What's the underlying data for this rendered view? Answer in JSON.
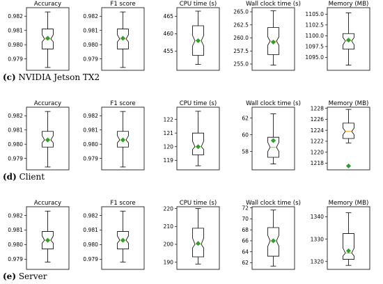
{
  "captions": [
    {
      "letter": "(c)",
      "text": "NVIDIA Jetson TX2"
    },
    {
      "letter": "(d)",
      "text": "Client"
    },
    {
      "letter": "(e)",
      "text": "Server"
    }
  ],
  "chart_data": [
    {
      "type": "box",
      "panel": "c",
      "title": "Accuracy",
      "ylim": [
        0.9782,
        0.9826
      ],
      "ticks": [
        0.979,
        0.98,
        0.981,
        0.982
      ],
      "whislo": 0.9784,
      "q1": 0.9797,
      "med_lo": 0.9802,
      "median": 0.9804,
      "med_hi": 0.9807,
      "q3": 0.9811,
      "whishi": 0.9823,
      "mean": 0.98045,
      "outliers": []
    },
    {
      "type": "box",
      "panel": "c",
      "title": "F1 score",
      "ylim": [
        0.9782,
        0.9826
      ],
      "ticks": [
        0.979,
        0.98,
        0.981,
        0.982
      ],
      "whislo": 0.9784,
      "q1": 0.9797,
      "med_lo": 0.9802,
      "median": 0.9804,
      "med_hi": 0.9807,
      "q3": 0.9811,
      "whishi": 0.9823,
      "mean": 0.98045,
      "outliers": []
    },
    {
      "type": "box",
      "panel": "c",
      "title": "CPU time (s)",
      "ylim": [
        449.5,
        467.5
      ],
      "ticks": [
        455,
        460,
        465
      ],
      "whislo": 451.2,
      "q1": 453.8,
      "med_lo": 456.5,
      "median": 458.0,
      "med_hi": 459.5,
      "q3": 462.3,
      "whishi": 466.5,
      "mean": 458.0,
      "outliers": []
    },
    {
      "type": "box",
      "panel": "c",
      "title": "Wall clock time (s)",
      "ylim": [
        253.8,
        265.8
      ],
      "ticks": [
        255.0,
        257.5,
        260.0,
        262.5,
        265.0
      ],
      "whislo": 254.8,
      "q1": 256.8,
      "med_lo": 258.6,
      "median": 259.4,
      "med_hi": 260.2,
      "q3": 262.0,
      "whishi": 265.2,
      "mean": 259.2,
      "outliers": []
    },
    {
      "type": "box",
      "panel": "c",
      "title": "Memory (MB)",
      "ylim": [
        1092.0,
        1106.5
      ],
      "ticks": [
        1095.0,
        1097.5,
        1100.0,
        1102.5,
        1105.0
      ],
      "whislo": 1093.2,
      "q1": 1096.9,
      "med_lo": 1097.9,
      "median": 1098.8,
      "med_hi": 1099.6,
      "q3": 1100.5,
      "whishi": 1105.3,
      "mean": 1099.0,
      "outliers": []
    },
    {
      "type": "box",
      "panel": "d",
      "title": "Accuracy",
      "ylim": [
        0.9782,
        0.9826
      ],
      "ticks": [
        0.979,
        0.98,
        0.981,
        0.982
      ],
      "whislo": 0.9784,
      "q1": 0.9798,
      "med_lo": 0.9801,
      "median": 0.9803,
      "med_hi": 0.9806,
      "q3": 0.9809,
      "whishi": 0.9823,
      "mean": 0.9803,
      "outliers": []
    },
    {
      "type": "box",
      "panel": "d",
      "title": "F1 score",
      "ylim": [
        0.9782,
        0.9826
      ],
      "ticks": [
        0.979,
        0.98,
        0.981,
        0.982
      ],
      "whislo": 0.9784,
      "q1": 0.9798,
      "med_lo": 0.9801,
      "median": 0.9803,
      "med_hi": 0.9806,
      "q3": 0.9809,
      "whishi": 0.9823,
      "mean": 0.9803,
      "outliers": []
    },
    {
      "type": "box",
      "panel": "d",
      "title": "CPU time (s)",
      "ylim": [
        118.3,
        122.9
      ],
      "ticks": [
        119,
        120,
        121,
        122
      ],
      "whislo": 118.6,
      "q1": 119.4,
      "med_lo": 119.8,
      "median": 120.0,
      "med_hi": 120.4,
      "q3": 121.0,
      "whishi": 122.6,
      "mean": 120.0,
      "outliers": []
    },
    {
      "type": "box",
      "panel": "d",
      "title": "Wall clock time (s)",
      "ylim": [
        55.8,
        63.3
      ],
      "ticks": [
        58,
        60,
        62
      ],
      "whislo": 56.5,
      "q1": 57.3,
      "med_lo": 58.0,
      "median": 58.5,
      "med_hi": 59.1,
      "q3": 59.7,
      "whishi": 62.5,
      "mean": 59.3,
      "outliers": []
    },
    {
      "type": "box",
      "panel": "d",
      "title": "Memory (MB)",
      "ylim": [
        1216.8,
        1228.2
      ],
      "ticks": [
        1218,
        1220,
        1222,
        1224,
        1226,
        1228
      ],
      "whislo": 1221.7,
      "q1": 1222.5,
      "med_lo": 1223.2,
      "median": 1223.8,
      "med_hi": 1224.4,
      "q3": 1225.3,
      "whishi": 1227.8,
      "mean": 1217.5,
      "outliers": []
    },
    {
      "type": "box",
      "panel": "e",
      "title": "Accuracy",
      "ylim": [
        0.9783,
        0.9826
      ],
      "ticks": [
        0.979,
        0.98,
        0.981,
        0.982
      ],
      "whislo": 0.9788,
      "q1": 0.9797,
      "med_lo": 0.9801,
      "median": 0.9803,
      "med_hi": 0.9806,
      "q3": 0.9809,
      "whishi": 0.9823,
      "mean": 0.9803,
      "outliers": []
    },
    {
      "type": "box",
      "panel": "e",
      "title": "F1 score",
      "ylim": [
        0.9783,
        0.9826
      ],
      "ticks": [
        0.979,
        0.98,
        0.981,
        0.982
      ],
      "whislo": 0.9788,
      "q1": 0.9797,
      "med_lo": 0.9801,
      "median": 0.9803,
      "med_hi": 0.9806,
      "q3": 0.9809,
      "whishi": 0.9823,
      "mean": 0.9803,
      "outliers": []
    },
    {
      "type": "box",
      "panel": "e",
      "title": "CPU time (s)",
      "ylim": [
        186,
        221
      ],
      "ticks": [
        190,
        200,
        210,
        220
      ],
      "whislo": 189.0,
      "q1": 193.0,
      "med_lo": 198.0,
      "median": 200.0,
      "med_hi": 203.5,
      "q3": 209.0,
      "whishi": 220.0,
      "mean": 200.5,
      "outliers": []
    },
    {
      "type": "box",
      "panel": "e",
      "title": "Wall clock time (s)",
      "ylim": [
        60.8,
        72.2
      ],
      "ticks": [
        62,
        64,
        66,
        68,
        70,
        72
      ],
      "whislo": 61.4,
      "q1": 63.2,
      "med_lo": 65.0,
      "median": 66.0,
      "med_hi": 67.0,
      "q3": 68.4,
      "whishi": 71.6,
      "mean": 66.0,
      "outliers": []
    },
    {
      "type": "box",
      "panel": "e",
      "title": "Memory (MB)",
      "ylim": [
        1316.5,
        1344.5
      ],
      "ticks": [
        1320,
        1330,
        1340
      ],
      "whislo": 1318.3,
      "q1": 1321.0,
      "med_lo": 1322.5,
      "median": 1323.8,
      "med_hi": 1326.0,
      "q3": 1332.5,
      "whishi": 1341.8,
      "mean": 1324.8,
      "outliers": []
    }
  ]
}
